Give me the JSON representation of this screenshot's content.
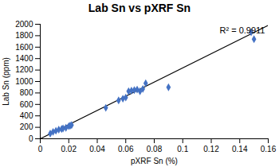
{
  "chart_data": {
    "type": "scatter",
    "title": "Lab Sn vs pXRF Sn",
    "xlabel": "pXRF Sn (%)",
    "ylabel": "Lab Sn (ppm)",
    "annotation": "R² = 0.9911",
    "xlim": [
      0,
      0.16
    ],
    "ylim": [
      0,
      2000
    ],
    "xticks": [
      0,
      0.02,
      0.04,
      0.06,
      0.08,
      0.1,
      0.12,
      0.14,
      0.16
    ],
    "yticks": [
      0,
      200,
      400,
      600,
      800,
      1000,
      1200,
      1400,
      1600,
      1800,
      2000
    ],
    "grid": false,
    "series": [
      {
        "type": "line",
        "color": "#000000",
        "line_style": "solid",
        "x": [
          0.0,
          0.16
        ],
        "values": [
          0.0,
          1980
        ]
      },
      {
        "type": "scatter",
        "color": "#4472C4",
        "marker": "diamond",
        "x": [
          0.007,
          0.009,
          0.011,
          0.013,
          0.015,
          0.016,
          0.018,
          0.02,
          0.021,
          0.022,
          0.046,
          0.055,
          0.058,
          0.06,
          0.062,
          0.064,
          0.066,
          0.068,
          0.07,
          0.072,
          0.074,
          0.09,
          0.148,
          0.15
        ],
        "values": [
          90,
          120,
          140,
          160,
          170,
          180,
          190,
          220,
          230,
          240,
          540,
          670,
          700,
          720,
          830,
          840,
          850,
          860,
          830,
          870,
          970,
          900,
          1860,
          1740
        ]
      }
    ]
  }
}
